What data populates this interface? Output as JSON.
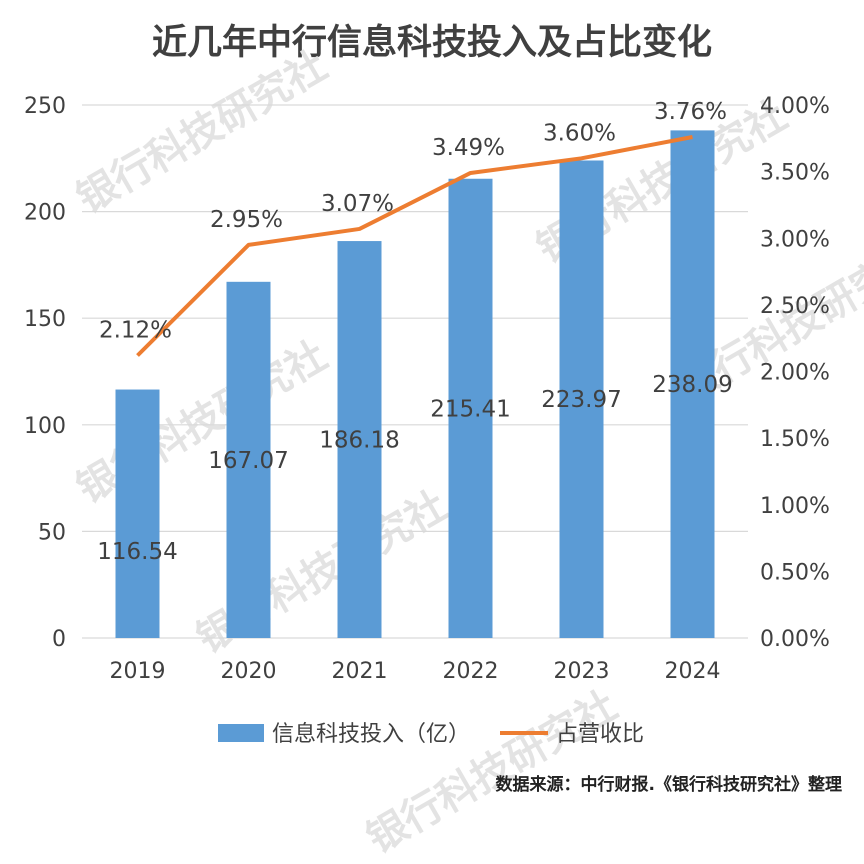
{
  "chart_data": {
    "title": "近几年中行信息科技投入及占比变化",
    "categories": [
      "2019",
      "2020",
      "2021",
      "2022",
      "2023",
      "2024"
    ],
    "series": [
      {
        "name": "信息科技投入（亿）",
        "type": "bar",
        "axis": "left",
        "values": [
          116.54,
          167.07,
          186.18,
          215.41,
          223.97,
          238.09
        ],
        "labels": [
          "116.54",
          "167.07",
          "186.18",
          "215.41",
          "223.97",
          "238.09"
        ],
        "color": "#5b9bd5"
      },
      {
        "name": "占营收比",
        "type": "line",
        "axis": "right",
        "values": [
          2.12,
          2.95,
          3.07,
          3.49,
          3.6,
          3.76
        ],
        "labels": [
          "2.12%",
          "2.95%",
          "3.07%",
          "3.49%",
          "3.60%",
          "3.76%"
        ],
        "color": "#ed7d31"
      }
    ],
    "y_left": {
      "range": [
        0,
        250
      ],
      "ticks": [
        "0",
        "50",
        "100",
        "150",
        "200",
        "250"
      ]
    },
    "y_right": {
      "range": [
        0,
        4
      ],
      "ticks": [
        "0.00%",
        "0.50%",
        "1.00%",
        "1.50%",
        "2.00%",
        "2.50%",
        "3.00%",
        "3.50%",
        "4.00%"
      ]
    },
    "grid": true,
    "legend_position": "bottom"
  },
  "source": "数据来源：中行财报.《银行科技研究社》整理",
  "watermark": "银行科技研究社"
}
